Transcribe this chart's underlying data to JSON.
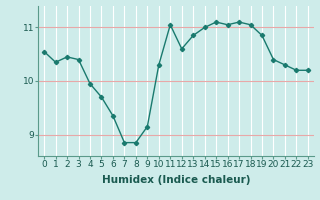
{
  "x": [
    0,
    1,
    2,
    3,
    4,
    5,
    6,
    7,
    8,
    9,
    10,
    11,
    12,
    13,
    14,
    15,
    16,
    17,
    18,
    19,
    20,
    21,
    22,
    23
  ],
  "y": [
    10.55,
    10.35,
    10.45,
    10.4,
    9.95,
    9.7,
    9.35,
    8.85,
    8.85,
    9.15,
    10.3,
    11.05,
    10.6,
    10.85,
    11.0,
    11.1,
    11.05,
    11.1,
    11.05,
    10.85,
    10.4,
    10.3,
    10.2,
    10.2
  ],
  "xlim": [
    -0.5,
    23.5
  ],
  "ylim": [
    8.6,
    11.4
  ],
  "yticks": [
    9,
    10,
    11
  ],
  "xticks": [
    0,
    1,
    2,
    3,
    4,
    5,
    6,
    7,
    8,
    9,
    10,
    11,
    12,
    13,
    14,
    15,
    16,
    17,
    18,
    19,
    20,
    21,
    22,
    23
  ],
  "xlabel": "Humidex (Indice chaleur)",
  "background_color": "#ceecea",
  "line_color": "#1a7a6e",
  "grid_v_color": "#ffffff",
  "grid_h_color": "#e8a8a8",
  "tick_fontsize": 6.5,
  "label_fontsize": 7.5
}
